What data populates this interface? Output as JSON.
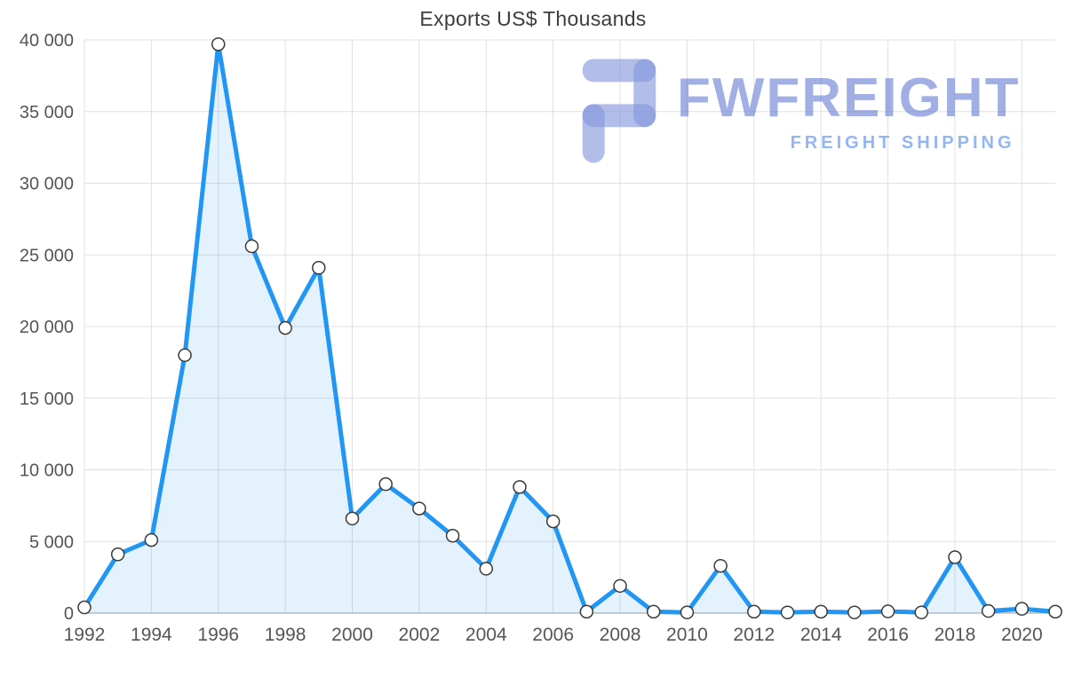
{
  "title": "Exports US$ Thousands",
  "watermark": {
    "brand": "FWFREIGHT",
    "tagline": "FREIGHT SHIPPING",
    "icon": "fwfreight-logo-icon",
    "icon_color": "rgba(130,150,220,0.62)",
    "brand_color": "rgba(103,126,212,0.62)",
    "tagline_color": "rgba(142,178,242,0.95)"
  },
  "chart_data": {
    "type": "area",
    "title": "Exports US$ Thousands",
    "x": [
      1992,
      1993,
      1994,
      1995,
      1996,
      1997,
      1998,
      1999,
      2000,
      2001,
      2002,
      2003,
      2004,
      2005,
      2006,
      2007,
      2008,
      2009,
      2010,
      2011,
      2012,
      2013,
      2014,
      2015,
      2016,
      2017,
      2018,
      2019,
      2020,
      2021
    ],
    "values": [
      400,
      4100,
      5100,
      18000,
      39700,
      25600,
      19900,
      24100,
      6600,
      9000,
      7300,
      5400,
      3100,
      8800,
      6400,
      100,
      1900,
      100,
      50,
      3300,
      100,
      50,
      100,
      50,
      120,
      50,
      3900,
      150,
      300,
      100
    ],
    "xlabel": "",
    "ylabel": "",
    "ylim": [
      0,
      40000
    ],
    "ytick_step": 5000,
    "ytick_labels": [
      "0",
      "5 000",
      "10 000",
      "15 000",
      "20 000",
      "25 000",
      "30 000",
      "35 000",
      "40 000"
    ],
    "xtick_every": 2,
    "xtick_labels": [
      "1992",
      "1994",
      "1996",
      "1998",
      "2000",
      "2002",
      "2004",
      "2006",
      "2008",
      "2010",
      "2012",
      "2014",
      "2016",
      "2018",
      "2020"
    ],
    "grid": true,
    "legend": "none",
    "line_color": "#2196f3",
    "fill_color": "rgba(33,150,243,0.12)",
    "marker_fill": "#ffffff",
    "marker_stroke": "#3a3a3a",
    "grid_color": "#e0e0e0",
    "axis_color": "#9e9e9e",
    "tick_color": "#555555"
  }
}
